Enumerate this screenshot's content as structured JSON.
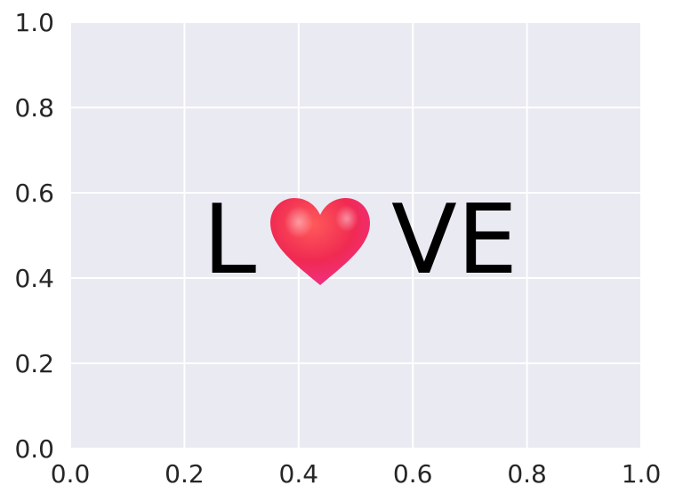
{
  "chart_data": {
    "type": "scatter",
    "title": "",
    "xlabel": "",
    "ylabel": "",
    "xlim": [
      0,
      1
    ],
    "ylim": [
      0,
      1
    ],
    "grid": true,
    "x_ticks": [
      "0.0",
      "0.2",
      "0.4",
      "0.6",
      "0.8",
      "1.0"
    ],
    "y_ticks": [
      "0.0",
      "0.2",
      "0.4",
      "0.6",
      "0.8",
      "1.0"
    ],
    "annotation": {
      "text_left": "L",
      "text_right": "VE",
      "icon": "heart-icon"
    },
    "colors": {
      "plot_background": "#eaeaf2",
      "grid": "#ffffff",
      "text": "#000000",
      "tick_text": "#262626",
      "heart_top": "#ff5a5a",
      "heart_mid": "#f02a52",
      "heart_bottom": "#f0329a"
    }
  }
}
